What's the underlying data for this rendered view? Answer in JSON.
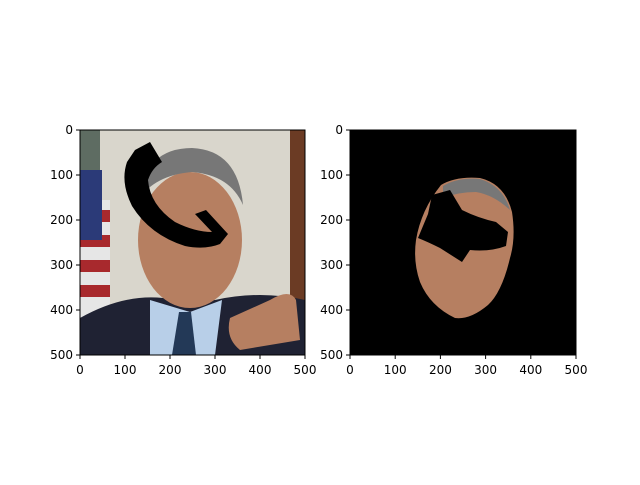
{
  "chart_data": [
    {
      "type": "image",
      "title": "",
      "xlabel": "",
      "ylabel": "",
      "xlim": [
        0,
        500
      ],
      "ylim": [
        500,
        0
      ],
      "x_ticks": [
        0,
        100,
        200,
        300,
        400,
        500
      ],
      "y_ticks": [
        0,
        100,
        200,
        300,
        400,
        500
      ],
      "x_tick_labels": [
        "0",
        "100",
        "200",
        "300",
        "400",
        "500"
      ],
      "y_tick_labels": [
        "0",
        "100",
        "200",
        "300",
        "400",
        "500"
      ],
      "grid": false,
      "content": "photo-with-black-occlusion",
      "colors": {
        "background": "#5e6c62",
        "skin": "#b67f61",
        "hair": "#777777",
        "suit": "#1f2233",
        "shirt": "#b8cfe8",
        "tie": "#233957",
        "flag_red": "#a8292d",
        "flag_white": "#e6e6e6",
        "mask": "#000000"
      }
    },
    {
      "type": "image",
      "title": "",
      "xlabel": "",
      "ylabel": "",
      "xlim": [
        0,
        500
      ],
      "ylim": [
        500,
        0
      ],
      "x_ticks": [
        0,
        100,
        200,
        300,
        400,
        500
      ],
      "y_ticks": [
        0,
        100,
        200,
        300,
        400,
        500
      ],
      "x_tick_labels": [
        "0",
        "100",
        "200",
        "300",
        "400",
        "500"
      ],
      "y_tick_labels": [
        "0",
        "100",
        "200",
        "300",
        "400",
        "500"
      ],
      "grid": false,
      "content": "segmented-face-on-black",
      "colors": {
        "background": "#000000",
        "skin": "#b67f61",
        "hair": "#777777",
        "mask": "#000000"
      }
    }
  ]
}
